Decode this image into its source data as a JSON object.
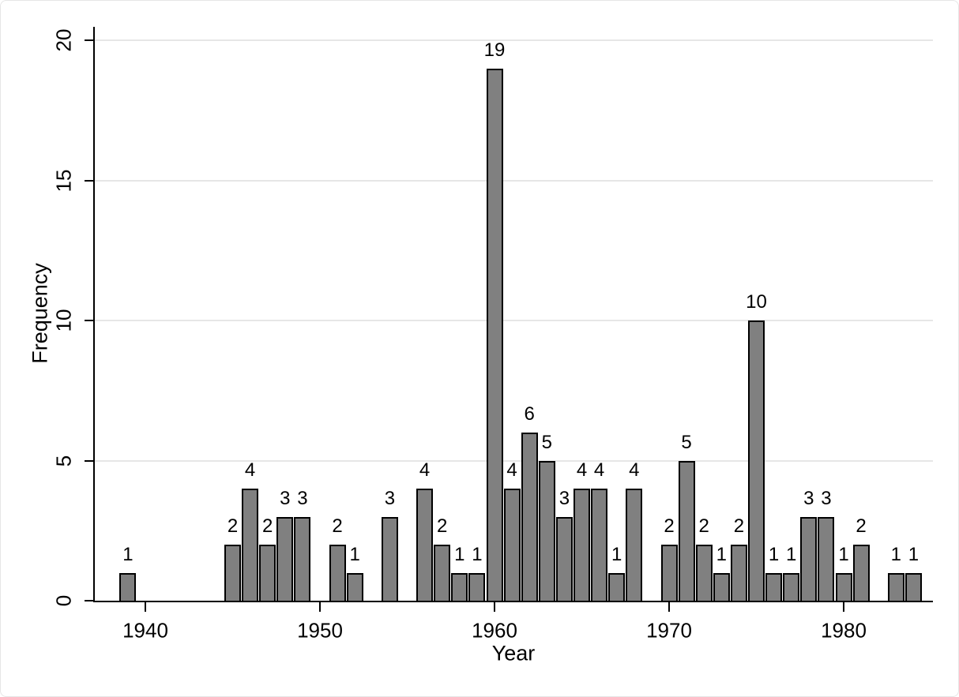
{
  "figure": {
    "xlabel": "Year",
    "ylabel": "Frequency"
  },
  "chart_data": {
    "type": "bar",
    "title": "",
    "xlabel": "Year",
    "ylabel": "Frequency",
    "categories": [
      1939,
      1945,
      1946,
      1947,
      1948,
      1949,
      1951,
      1952,
      1954,
      1956,
      1957,
      1958,
      1959,
      1960,
      1961,
      1962,
      1963,
      1964,
      1965,
      1966,
      1967,
      1968,
      1970,
      1971,
      1972,
      1973,
      1974,
      1975,
      1976,
      1977,
      1978,
      1979,
      1980,
      1981,
      1983,
      1984
    ],
    "values": [
      1,
      2,
      4,
      2,
      3,
      3,
      2,
      1,
      3,
      4,
      2,
      1,
      1,
      19,
      4,
      6,
      5,
      3,
      4,
      4,
      1,
      4,
      2,
      5,
      2,
      1,
      2,
      10,
      1,
      1,
      3,
      3,
      1,
      2,
      1,
      1
    ],
    "bar_value_labels_shown": true,
    "xticks": [
      1940,
      1950,
      1960,
      1970,
      1980
    ],
    "yticks": [
      0,
      5,
      10,
      15,
      20
    ],
    "xlim": [
      1937.1,
      1985.1
    ],
    "ylim": [
      0,
      20
    ],
    "grid": "horizontal-only",
    "legend": "none",
    "bar_fill_color": "#808080",
    "bar_edge_color": "#000000",
    "gridline_color": "#e6e6e6",
    "axis_color": "#000000",
    "background_color": "#ffffff",
    "ytick_label_angle_degrees": 90
  }
}
